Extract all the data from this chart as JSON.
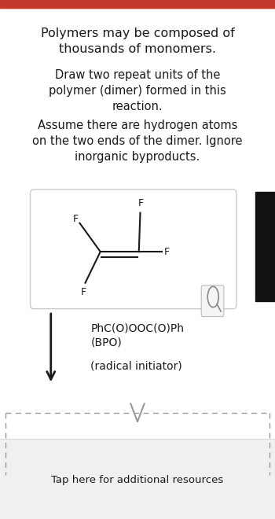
{
  "bg_color": "#ffffff",
  "top_bar_color": "#c0392b",
  "title_text1": "Polymers may be composed of",
  "title_text2": "thousands of monomers.",
  "reagent_text1": "PhC(O)OOC(O)Ph",
  "reagent_text2": "(BPO)",
  "reagent_text3": "(radical initiator)",
  "tap_text": "Tap here for additional resources",
  "text_color": "#1a1a1a",
  "line_color": "#1a1a1a",
  "box_line_color": "#cccccc",
  "dashed_color": "#999999"
}
